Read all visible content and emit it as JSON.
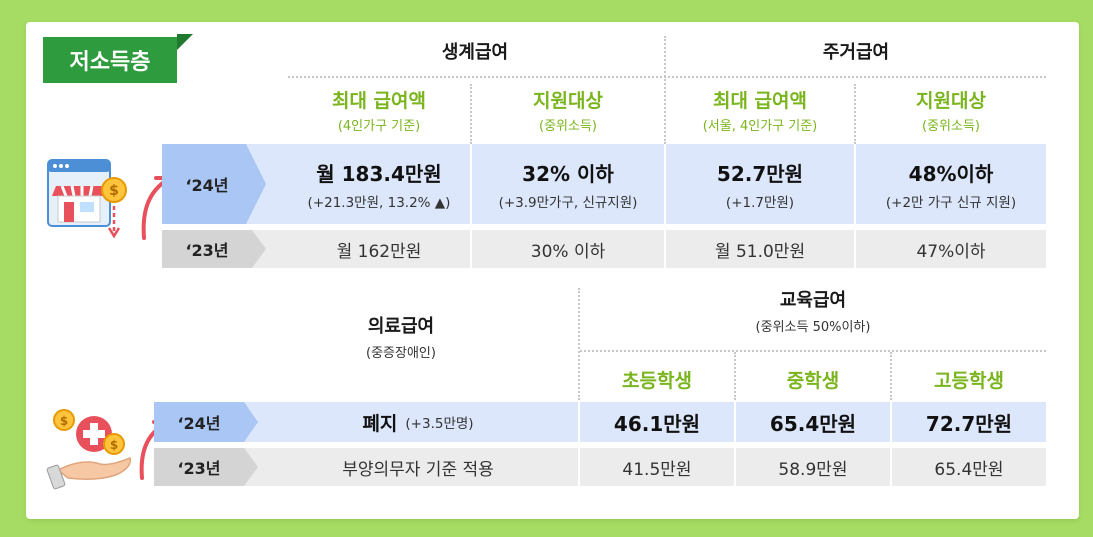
{
  "tag": "저소득층",
  "top": {
    "group_living": "생계급여",
    "group_housing": "주거급여",
    "columns": [
      {
        "title": "최대 급여액",
        "sub": "(4인가구 기준)"
      },
      {
        "title": "지원대상",
        "sub": "(중위소득)"
      },
      {
        "title": "최대 급여액",
        "sub": "(서울, 4인가구 기준)"
      },
      {
        "title": "지원대상",
        "sub": "(중위소득)"
      }
    ],
    "row24": {
      "year": "‘24년",
      "cells": [
        {
          "main": "월 183.4만원",
          "sub": "(+21.3만원, 13.2% ▲)"
        },
        {
          "main": "32% 이하",
          "sub": "(+3.9만가구, 신규지원)"
        },
        {
          "main": "52.7만원",
          "sub": "(+1.7만원)"
        },
        {
          "main": "48%이하",
          "sub": "(+2만 가구 신규 지원)"
        }
      ]
    },
    "row23": {
      "year": "‘23년",
      "cells": [
        "월 162만원",
        "30% 이하",
        "월 51.0만원",
        "47%이하"
      ]
    }
  },
  "bottom": {
    "medical_title": "의료급여",
    "medical_sub": "(중증장애인)",
    "education_title": "교육급여",
    "education_sub": "(중위소득 50%이하)",
    "columns": [
      "초등학생",
      "중학생",
      "고등학생"
    ],
    "row24": {
      "year": "‘24년",
      "medical_main": "폐지",
      "medical_sub": "(+3.5만명)",
      "cells": [
        "46.1만원",
        "65.4만원",
        "72.7만원"
      ]
    },
    "row23": {
      "year": "‘23년",
      "medical": "부양의무자 기준 적용",
      "cells": [
        "41.5만원",
        "58.9만원",
        "65.4만원"
      ]
    }
  },
  "colors": {
    "background": "#a6dc63",
    "tag": "#2e9b3e",
    "accent_green": "#7ab51d",
    "row24": "#dce7fb",
    "year24": "#a9c6f5",
    "row23": "#ececec",
    "year23": "#d4d4d4"
  },
  "icons": [
    "shop-coin-icon",
    "hand-medical-coin-icon",
    "arrow-up-icon"
  ]
}
